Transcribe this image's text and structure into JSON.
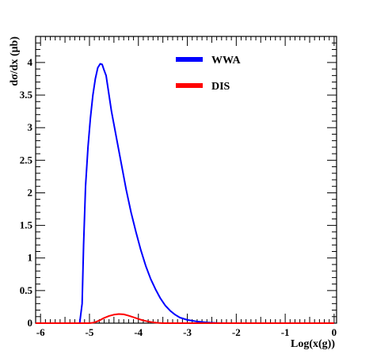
{
  "chart_data": {
    "type": "line",
    "title": "",
    "xlabel": "Log(x(g))",
    "ylabel": "dσ/dx (μb)",
    "xlim": [
      -6.1,
      0.05
    ],
    "ylim": [
      0,
      4.4
    ],
    "grid": false,
    "legend_position": "top-right",
    "x_ticks": [
      -6,
      -5,
      -4,
      -3,
      -2,
      -1,
      0
    ],
    "x_tick_labels": [
      "-6",
      "-5",
      "-4",
      "-3",
      "-2",
      "-1",
      "0"
    ],
    "y_ticks": [
      0,
      0.5,
      1,
      1.5,
      2,
      2.5,
      3,
      3.5,
      4
    ],
    "y_tick_labels": [
      "0",
      "0.5",
      "1",
      "1.5",
      "2",
      "2.5",
      "3",
      "3.5",
      "4"
    ],
    "series": [
      {
        "name": "WWA",
        "color": "#0000ff",
        "points": [
          [
            -6.1,
            0
          ],
          [
            -5.2,
            0
          ],
          [
            -5.15,
            0.3
          ],
          [
            -5.12,
            1.2
          ],
          [
            -5.08,
            2.1
          ],
          [
            -5.03,
            2.7
          ],
          [
            -4.98,
            3.15
          ],
          [
            -4.93,
            3.5
          ],
          [
            -4.88,
            3.75
          ],
          [
            -4.83,
            3.92
          ],
          [
            -4.78,
            3.98
          ],
          [
            -4.74,
            3.97
          ],
          [
            -4.7,
            3.88
          ],
          [
            -4.66,
            3.8
          ],
          [
            -4.62,
            3.6
          ],
          [
            -4.55,
            3.25
          ],
          [
            -4.45,
            2.85
          ],
          [
            -4.35,
            2.45
          ],
          [
            -4.25,
            2.05
          ],
          [
            -4.15,
            1.7
          ],
          [
            -4.05,
            1.4
          ],
          [
            -3.95,
            1.12
          ],
          [
            -3.85,
            0.88
          ],
          [
            -3.75,
            0.68
          ],
          [
            -3.65,
            0.52
          ],
          [
            -3.55,
            0.38
          ],
          [
            -3.45,
            0.27
          ],
          [
            -3.35,
            0.19
          ],
          [
            -3.25,
            0.13
          ],
          [
            -3.15,
            0.085
          ],
          [
            -3.0,
            0.05
          ],
          [
            -2.8,
            0.025
          ],
          [
            -2.6,
            0.01
          ],
          [
            -2.4,
            0.003
          ],
          [
            -2.2,
            0
          ],
          [
            0,
            0
          ]
        ]
      },
      {
        "name": "DIS",
        "color": "#ff0000",
        "points": [
          [
            -6.1,
            0
          ],
          [
            -5.0,
            0
          ],
          [
            -4.9,
            0.01
          ],
          [
            -4.8,
            0.04
          ],
          [
            -4.7,
            0.08
          ],
          [
            -4.6,
            0.11
          ],
          [
            -4.5,
            0.13
          ],
          [
            -4.4,
            0.14
          ],
          [
            -4.3,
            0.135
          ],
          [
            -4.2,
            0.115
          ],
          [
            -4.1,
            0.09
          ],
          [
            -4.0,
            0.065
          ],
          [
            -3.9,
            0.042
          ],
          [
            -3.8,
            0.025
          ],
          [
            -3.7,
            0.012
          ],
          [
            -3.6,
            0.005
          ],
          [
            -3.5,
            0
          ],
          [
            0,
            0
          ]
        ]
      }
    ]
  }
}
